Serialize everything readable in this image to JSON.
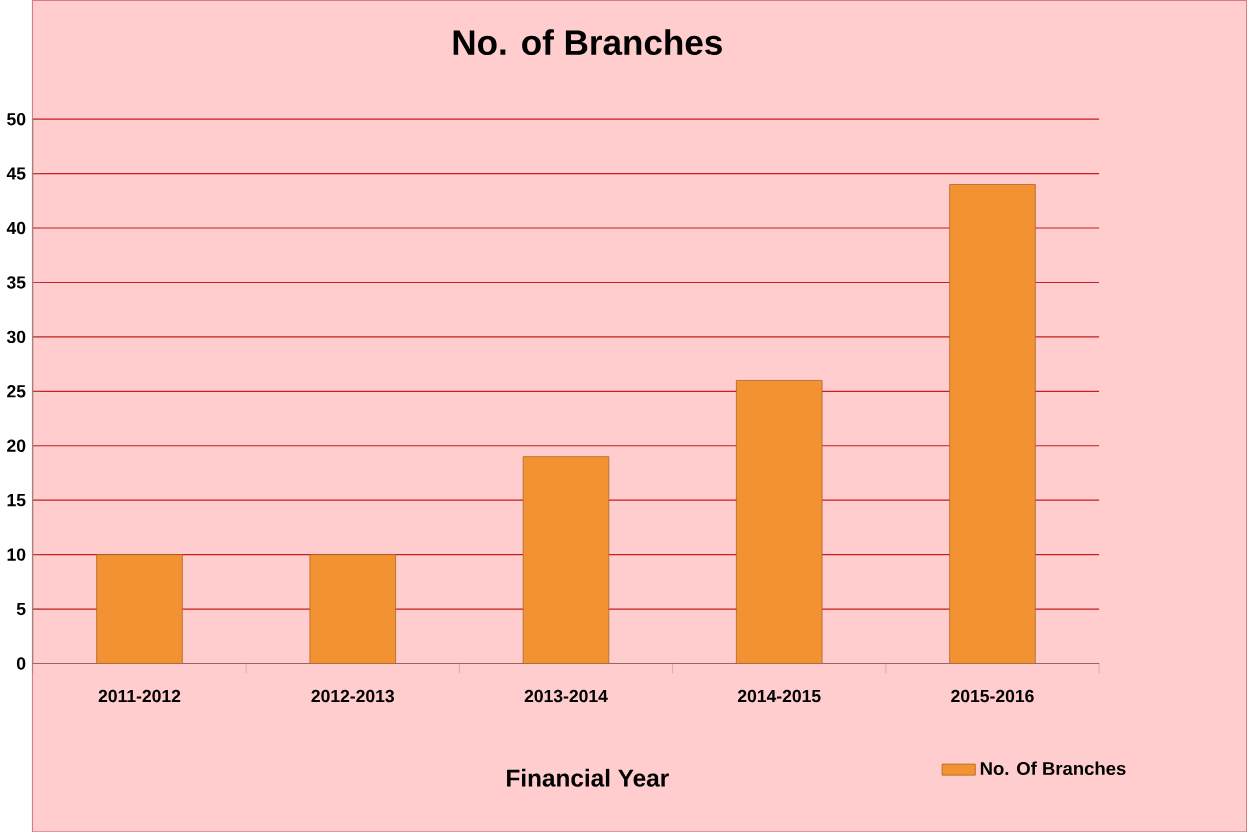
{
  "chart_data": {
    "type": "bar",
    "title": "No. of Branches",
    "xlabel": "Financial Year",
    "categories": [
      "2011-2012",
      "2012-2013",
      "2013-2014",
      "2014-2015",
      "2015-2016"
    ],
    "series": [
      {
        "name": "No. Of Branches",
        "color": "#f39233",
        "values": [
          10,
          10,
          19,
          26,
          44
        ]
      }
    ],
    "ylim": [
      0,
      50
    ],
    "yticks": [
      0,
      5,
      10,
      15,
      20,
      25,
      30,
      35,
      40,
      45,
      50
    ],
    "grid": "y",
    "legend": "bottom right"
  }
}
